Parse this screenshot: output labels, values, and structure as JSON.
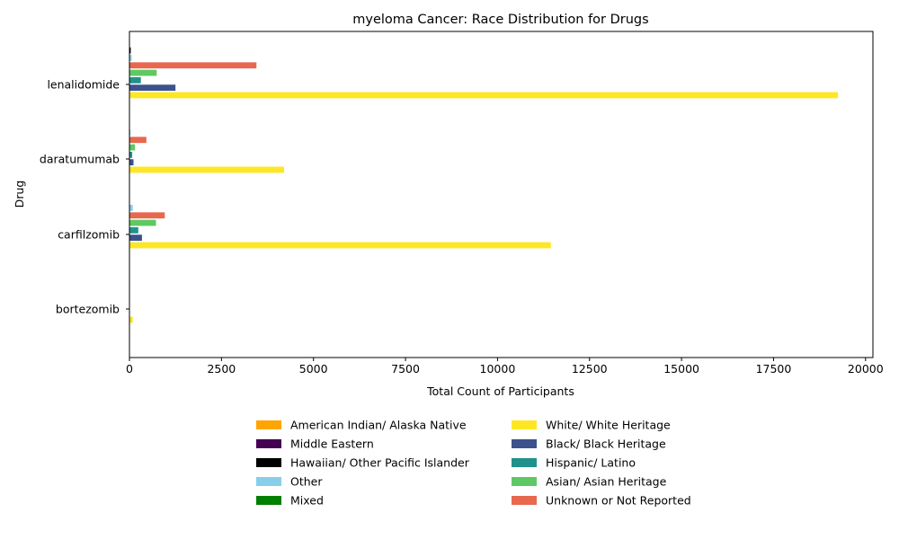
{
  "chart_data": {
    "type": "bar",
    "orientation": "horizontal",
    "title": "myeloma Cancer: Race Distribution for Drugs",
    "xlabel": "Total Count of Participants",
    "ylabel": "Drug",
    "xlim": [
      0,
      20200
    ],
    "xticks": [
      0,
      2500,
      5000,
      7500,
      10000,
      12500,
      15000,
      17500,
      20000
    ],
    "xtick_labels": [
      "0",
      "2500",
      "5000",
      "7500",
      "10000",
      "12500",
      "15000",
      "17500",
      "20000"
    ],
    "categories": [
      "lenalidomide",
      "daratumumab",
      "carfilzomib",
      "bortezomib"
    ],
    "grid": false,
    "legend_position": "bottom-center",
    "series": [
      {
        "name": "American Indian/ Alaska Native",
        "color": "#FFA500",
        "values": [
          5,
          2,
          4,
          0
        ]
      },
      {
        "name": "Middle Eastern",
        "color": "#440154",
        "values": [
          8,
          2,
          3,
          0
        ]
      },
      {
        "name": "Hawaiian/ Other Pacific Islander",
        "color": "#000000",
        "values": [
          35,
          5,
          12,
          0
        ]
      },
      {
        "name": "Other",
        "color": "#87CEEB",
        "values": [
          60,
          25,
          90,
          0
        ]
      },
      {
        "name": "Mixed",
        "color": "#008000",
        "values": [
          5,
          2,
          3,
          0
        ]
      },
      {
        "name": "White/ White Heritage",
        "color": "#FDE725",
        "values": [
          19250,
          4200,
          11450,
          90
        ]
      },
      {
        "name": "Black/ Black Heritage",
        "color": "#3B528B",
        "values": [
          1250,
          110,
          340,
          0
        ]
      },
      {
        "name": "Hispanic/ Latino",
        "color": "#21918C",
        "values": [
          310,
          75,
          240,
          0
        ]
      },
      {
        "name": "Asian/ Asian Heritage",
        "color": "#5EC962",
        "values": [
          740,
          150,
          720,
          0
        ]
      },
      {
        "name": "Unknown or Not Reported",
        "color": "#E8684F",
        "values": [
          3450,
          460,
          960,
          0
        ]
      }
    ],
    "bar_order_top_to_bottom": [
      2,
      3,
      9,
      8,
      7,
      6,
      5,
      4,
      1,
      0
    ]
  }
}
